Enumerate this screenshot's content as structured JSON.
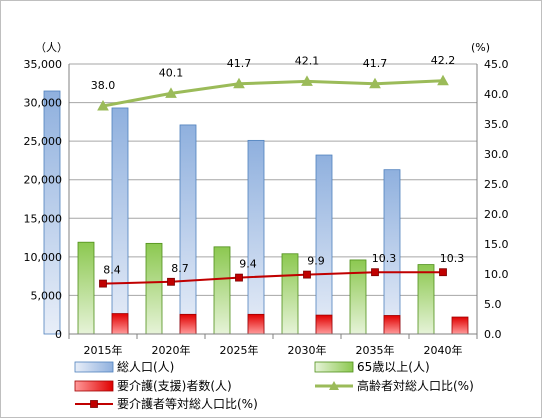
{
  "chart_data": {
    "type": "bar",
    "categories": [
      "2015年",
      "2020年",
      "2025年",
      "2030年",
      "2035年",
      "2040年"
    ],
    "left_unit": "（人）",
    "right_unit": "(%)",
    "left_ylim": [
      0,
      35000
    ],
    "left_ticks": [
      "0",
      "5,000",
      "10,000",
      "15,000",
      "20,000",
      "25,000",
      "30,000",
      "35,000"
    ],
    "right_ylim": [
      0,
      45
    ],
    "right_ticks": [
      "0.0",
      "5.0",
      "10.0",
      "15.0",
      "20.0",
      "25.0",
      "30.0",
      "35.0",
      "40.0",
      "45.0"
    ],
    "grid": true,
    "legend_position": "bottom",
    "series": [
      {
        "name": "総人口(人)",
        "kind": "bar",
        "axis": "left",
        "color": "#95b3d7",
        "values": [
          31500,
          29300,
          27100,
          25100,
          23200,
          21300
        ]
      },
      {
        "name": "65歳以上(人)",
        "kind": "bar",
        "axis": "left",
        "color": "#92d050",
        "values": [
          11900,
          11750,
          11300,
          10400,
          9600,
          9000
        ]
      },
      {
        "name": "要介護(支援)者数(人)",
        "kind": "bar",
        "axis": "left",
        "color": "#e00000",
        "values": [
          2650,
          2550,
          2550,
          2450,
          2400,
          2200
        ]
      },
      {
        "name": "高齢者対総人口比(%)",
        "kind": "line",
        "axis": "right",
        "color": "#9bbb59",
        "marker": "triangle",
        "values": [
          38.0,
          40.1,
          41.7,
          42.1,
          41.7,
          42.2
        ],
        "labels": [
          "38.0",
          "40.1",
          "41.7",
          "42.1",
          "41.7",
          "42.2"
        ]
      },
      {
        "name": "要介護者等対総人口比(%)",
        "kind": "line",
        "axis": "right",
        "color": "#c00000",
        "marker": "square",
        "values": [
          8.4,
          8.7,
          9.4,
          9.9,
          10.3,
          10.3
        ],
        "labels": [
          "8.4",
          "8.7",
          "9.4",
          "9.9",
          "10.3",
          "10.3"
        ]
      }
    ]
  }
}
